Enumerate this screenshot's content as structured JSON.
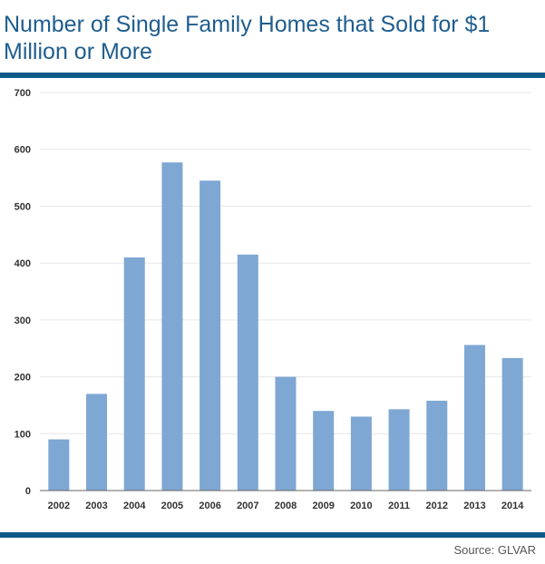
{
  "title": "Number of Single Family Homes that Sold for $1 Million or More",
  "source": "Source: GLVAR",
  "chart_data": {
    "type": "bar",
    "title": "Number of Single Family Homes that Sold for $1 Million or More",
    "xlabel": "",
    "ylabel": "",
    "categories": [
      "2002",
      "2003",
      "2004",
      "2005",
      "2006",
      "2007",
      "2008",
      "2009",
      "2010",
      "2011",
      "2012",
      "2013",
      "2014"
    ],
    "values": [
      90,
      170,
      410,
      577,
      545,
      415,
      200,
      140,
      130,
      143,
      158,
      256,
      233
    ],
    "ylim": [
      0,
      700
    ],
    "yticks": [
      0,
      100,
      200,
      300,
      400,
      500,
      600,
      700
    ],
    "bar_color": "#7fa7d3",
    "grid": true,
    "legend": "none"
  }
}
